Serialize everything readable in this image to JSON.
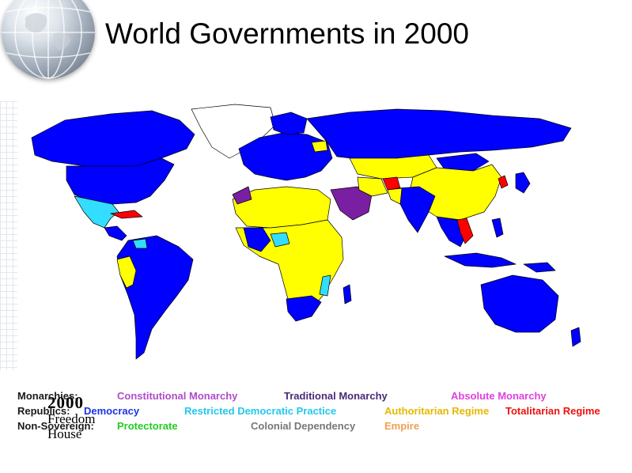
{
  "slide": {
    "title": "World Governments in 2000"
  },
  "map": {
    "caption_year": "2000",
    "caption_source_line1": "Freedom",
    "caption_source_line2": "House",
    "colors": {
      "ocean": "#ffffff",
      "democracy": "#0000ff",
      "restricted_democratic": "#33ddff",
      "authoritarian": "#ffff00",
      "totalitarian": "#ff0000",
      "traditional_monarchy": "#7b1fa2",
      "border": "#000000"
    }
  },
  "legend": {
    "rows": [
      {
        "category": "Monarchies:",
        "items": [
          {
            "label": "Constitutional Monarchy",
            "color": "#b04cc8"
          },
          {
            "label": "Traditional Monarchy",
            "color": "#4a2a7a"
          },
          {
            "label": "Absolute Monarchy",
            "color": "#e040e0"
          }
        ]
      },
      {
        "category": "Republics:",
        "items": [
          {
            "label": "Democracy",
            "color": "#1a33e6"
          },
          {
            "label": "Restricted Democratic Practice",
            "color": "#22c8ee"
          },
          {
            "label": "Authoritarian Regime",
            "color": "#e6b800"
          },
          {
            "label": "Totalitarian Regime",
            "color": "#ee1111"
          }
        ]
      },
      {
        "category": "Non-Sovereign:",
        "items": [
          {
            "label": "Protectorate",
            "color": "#22cc22"
          },
          {
            "label": "Colonial Dependency",
            "color": "#777777"
          },
          {
            "label": "Empire",
            "color": "#f0a050"
          }
        ]
      }
    ]
  }
}
